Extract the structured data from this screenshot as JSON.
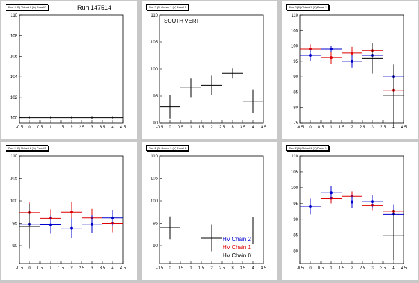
{
  "canvas": {
    "run_label": "Run 147514",
    "legend": [
      {
        "label": "HV Chain 2",
        "color": "#0000cc"
      },
      {
        "label": "HV Chain 1",
        "color": "#dd0000"
      },
      {
        "label": "HV Chain 0",
        "color": "#000000"
      }
    ]
  },
  "panels": [
    {
      "title": "Run 2 (B) Octant 1 (V) Panel 0",
      "text": ""
    },
    {
      "title": "Run 2 (B) Octant 1 (V) Panel 1",
      "text": "SOUTH VERT"
    },
    {
      "title": "Run 2 (B) Octant 1 (V) Panel 2",
      "text": ""
    },
    {
      "title": "Run 2 (B) Octant 1 (V) Panel 3",
      "text": ""
    },
    {
      "title": "Run 2 (B) Octant 1 (V) Panel 4",
      "text": ""
    },
    {
      "title": "Run 2 (B) Octant 1 (V) Panel 5",
      "text": ""
    }
  ],
  "chart_data": [
    {
      "type": "scatter",
      "xlim": [
        -0.5,
        4.5
      ],
      "ylim": [
        99.5,
        110
      ],
      "xticks": [
        -0.5,
        0,
        0.5,
        1,
        1.5,
        2,
        2.5,
        3,
        3.5,
        4,
        4.5
      ],
      "yticks": [
        100,
        102,
        104,
        106,
        108,
        110
      ],
      "series": [
        {
          "color": "#000000",
          "marker": false,
          "x": [
            0,
            1,
            2,
            3,
            4
          ],
          "y": [
            100,
            100,
            100,
            100,
            100
          ],
          "yerr": [
            0.15,
            0.15,
            0.15,
            0.15,
            0.15
          ]
        }
      ]
    },
    {
      "type": "scatter",
      "xlim": [
        -0.5,
        4.5
      ],
      "ylim": [
        90,
        110
      ],
      "xticks": [
        -0.5,
        0,
        0.5,
        1,
        1.5,
        2,
        2.5,
        3,
        3.5,
        4,
        4.5
      ],
      "yticks": [
        90,
        95,
        100,
        105,
        110
      ],
      "series": [
        {
          "color": "#000000",
          "marker": false,
          "x": [
            0,
            1,
            2,
            3,
            4
          ],
          "y": [
            93,
            96.5,
            97,
            99.2,
            94
          ],
          "yerr": [
            2.2,
            1.8,
            1.8,
            0.9,
            2.2
          ]
        }
      ]
    },
    {
      "type": "scatter",
      "xlim": [
        -0.5,
        4.5
      ],
      "ylim": [
        75,
        110
      ],
      "xticks": [
        -0.5,
        0,
        0.5,
        1,
        1.5,
        2,
        2.5,
        3,
        3.5,
        4,
        4.5
      ],
      "yticks": [
        75,
        80,
        85,
        90,
        95,
        100,
        105,
        110
      ],
      "series": [
        {
          "color": "#dd0000",
          "marker": true,
          "x": [
            0,
            1,
            2,
            3,
            4
          ],
          "y": [
            99,
            96.3,
            97.7,
            98.5,
            85.6
          ],
          "yerr": [
            1.5,
            2,
            2,
            2,
            5
          ]
        },
        {
          "color": "#0000cc",
          "marker": true,
          "x": [
            0,
            1,
            2,
            3,
            4
          ],
          "y": [
            97,
            99,
            95,
            97,
            90
          ],
          "yerr": [
            2,
            1,
            2,
            2,
            4
          ]
        },
        {
          "color": "#000000",
          "marker": false,
          "x": [
            3,
            4
          ],
          "y": [
            96,
            84
          ],
          "yerr": [
            5,
            10
          ]
        }
      ]
    },
    {
      "type": "scatter",
      "xlim": [
        -0.5,
        4.5
      ],
      "ylim": [
        86,
        110
      ],
      "xticks": [
        -0.5,
        0,
        0.5,
        1,
        1.5,
        2,
        2.5,
        3,
        3.5,
        4,
        4.5
      ],
      "yticks": [
        90,
        95,
        100,
        105,
        110
      ],
      "series": [
        {
          "color": "#dd0000",
          "marker": true,
          "x": [
            0,
            1,
            2,
            3,
            4
          ],
          "y": [
            97.4,
            96.1,
            97.5,
            96.2,
            95
          ],
          "yerr": [
            2.3,
            2,
            2.3,
            2,
            2
          ]
        },
        {
          "color": "#0000cc",
          "marker": true,
          "x": [
            0,
            1,
            2,
            3,
            4
          ],
          "y": [
            94.8,
            94.7,
            93.9,
            94.8,
            96.2
          ],
          "yerr": [
            2.2,
            2,
            2.2,
            2,
            1.8
          ]
        },
        {
          "color": "#000000",
          "marker": false,
          "x": [
            0
          ],
          "y": [
            94.3
          ],
          "yerr": [
            5
          ]
        }
      ]
    },
    {
      "type": "scatter",
      "xlim": [
        -0.5,
        4.5
      ],
      "ylim": [
        86,
        110
      ],
      "xticks": [
        -0.5,
        0,
        0.5,
        1,
        1.5,
        2,
        2.5,
        3,
        3.5,
        4,
        4.5
      ],
      "yticks": [
        90,
        95,
        100,
        105,
        110
      ],
      "series": [
        {
          "color": "#000000",
          "marker": false,
          "x": [
            0,
            2,
            4
          ],
          "y": [
            94,
            91.7,
            93.3
          ],
          "yerr": [
            2.5,
            3,
            3
          ]
        }
      ]
    },
    {
      "type": "scatter",
      "xlim": [
        -0.5,
        4.5
      ],
      "ylim": [
        76,
        110
      ],
      "xticks": [
        -0.5,
        0,
        0.5,
        1,
        1.5,
        2,
        2.5,
        3,
        3.5,
        4,
        4.5
      ],
      "yticks": [
        80,
        85,
        90,
        95,
        100,
        105,
        110
      ],
      "series": [
        {
          "color": "#dd0000",
          "marker": true,
          "x": [
            1,
            2,
            3,
            4
          ],
          "y": [
            96.6,
            97.3,
            94.4,
            92.6
          ],
          "yerr": [
            1.5,
            1.5,
            1.5,
            2
          ]
        },
        {
          "color": "#0000cc",
          "marker": true,
          "x": [
            0,
            1,
            2,
            3,
            4
          ],
          "y": [
            94.1,
            98.4,
            95.5,
            95.6,
            91.6
          ],
          "yerr": [
            2.5,
            2,
            2,
            2,
            3
          ]
        },
        {
          "color": "#000000",
          "marker": false,
          "x": [
            4
          ],
          "y": [
            85
          ],
          "yerr": [
            8
          ]
        }
      ]
    }
  ]
}
